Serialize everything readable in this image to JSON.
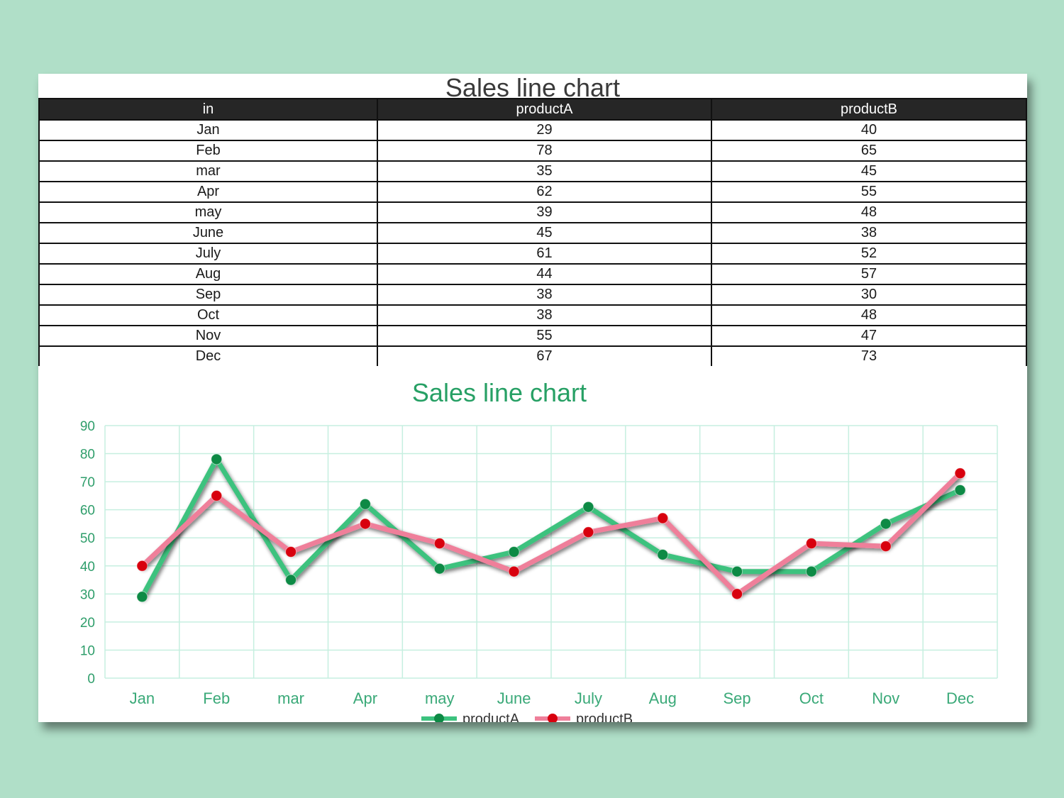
{
  "sheet": {
    "title": "Sales line chart"
  },
  "table": {
    "headers": [
      "in",
      "productA",
      "productB"
    ],
    "rows": [
      [
        "Jan",
        "29",
        "40"
      ],
      [
        "Feb",
        "78",
        "65"
      ],
      [
        "mar",
        "35",
        "45"
      ],
      [
        "Apr",
        "62",
        "55"
      ],
      [
        "may",
        "39",
        "48"
      ],
      [
        "June",
        "45",
        "38"
      ],
      [
        "July",
        "61",
        "52"
      ],
      [
        "Aug",
        "44",
        "57"
      ],
      [
        "Sep",
        "38",
        "30"
      ],
      [
        "Oct",
        "38",
        "48"
      ],
      [
        "Nov",
        "55",
        "47"
      ],
      [
        "Dec",
        "67",
        "73"
      ]
    ]
  },
  "colors": {
    "background": "#b0dfc8",
    "productA": "#3cc27e",
    "productB": "#ef7f9a",
    "markerA": "#0d8a45",
    "markerB": "#d8000e",
    "grid": "#c6efe0",
    "title": "#27a065"
  },
  "chart_data": {
    "type": "line",
    "title": "Sales line chart",
    "xlabel": "",
    "ylabel": "",
    "categories": [
      "Jan",
      "Feb",
      "mar",
      "Apr",
      "may",
      "June",
      "July",
      "Aug",
      "Sep",
      "Oct",
      "Nov",
      "Dec"
    ],
    "series": [
      {
        "name": "productA",
        "values": [
          29,
          78,
          35,
          62,
          39,
          45,
          61,
          44,
          38,
          38,
          55,
          67
        ]
      },
      {
        "name": "productB",
        "values": [
          40,
          65,
          45,
          55,
          48,
          38,
          52,
          57,
          30,
          48,
          47,
          73
        ]
      }
    ],
    "ylim": [
      0,
      90
    ],
    "yticks": [
      0,
      10,
      20,
      30,
      40,
      50,
      60,
      70,
      80,
      90
    ],
    "grid": true,
    "legend": "bottom"
  }
}
